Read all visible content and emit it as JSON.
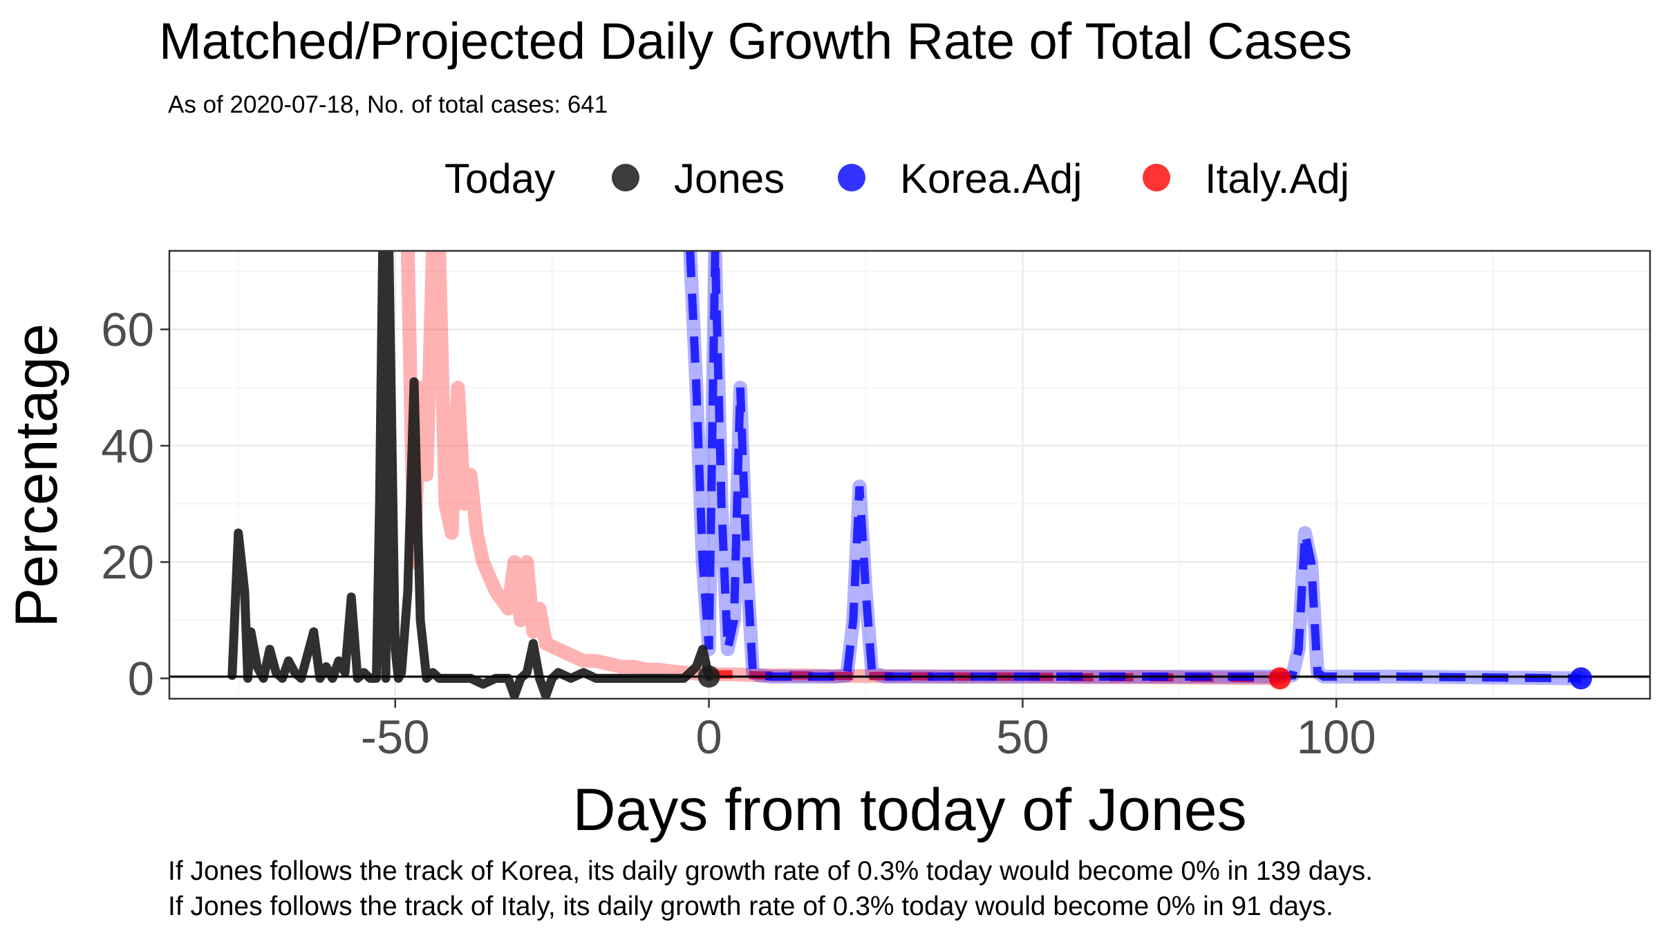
{
  "chart_data": {
    "type": "line",
    "title": "Matched/Projected Daily Growth Rate of Total Cases",
    "subtitle": "As of 2020-07-18, No. of total cases: 641",
    "xlabel": "Days from today of Jones",
    "ylabel": "Percentage",
    "xlim": [
      -86,
      150
    ],
    "ylim": [
      -3.5,
      73.5
    ],
    "xticks": [
      -50,
      0,
      50,
      100
    ],
    "yticks": [
      0,
      20,
      40,
      60
    ],
    "grid": true,
    "legend": {
      "position": "top",
      "title": "Today",
      "entries": [
        {
          "label": "Jones",
          "color": "#1a1a1a"
        },
        {
          "label": "Korea.Adj",
          "color": "#0000ff"
        },
        {
          "label": "Italy.Adj",
          "color": "#ff0000"
        }
      ]
    },
    "reference_line_y": 0.3,
    "series": [
      {
        "name": "Jones",
        "color": "#1a1a1a",
        "x": [
          -76,
          -75,
          -74,
          -73.5,
          -73,
          -72,
          -71,
          -70,
          -69,
          -68,
          -67,
          -66,
          -65,
          -64,
          -63,
          -62,
          -61,
          -60,
          -59,
          -58,
          -57,
          -56,
          -55,
          -54,
          -53,
          -52.5,
          -52,
          -51.5,
          -51,
          -50,
          -49.5,
          -49,
          -48,
          -47,
          -46,
          -45,
          -44,
          -43,
          -42,
          -40,
          -38,
          -36,
          -34,
          -32,
          -31,
          -30,
          -29,
          -28,
          -27,
          -26,
          -25,
          -24,
          -22,
          -20,
          -18,
          -16,
          -14,
          -12,
          -10,
          -8,
          -6,
          -4,
          -3,
          -2,
          -1,
          0
        ],
        "y": [
          0.5,
          25,
          15,
          0,
          8,
          2,
          0,
          5,
          1,
          0,
          3,
          1,
          0,
          4,
          8,
          0,
          2,
          0,
          3,
          1,
          14,
          0,
          1,
          0,
          0,
          30,
          73.5,
          0,
          73.5,
          5,
          0,
          1,
          15,
          51,
          10,
          0,
          1,
          0,
          0,
          0,
          0,
          -1,
          0,
          0,
          -3,
          0,
          1,
          6,
          0,
          -3,
          0,
          1,
          0,
          1,
          0,
          0,
          0,
          0,
          0,
          0,
          0,
          0,
          1,
          2,
          5,
          0.3
        ]
      },
      {
        "name": "Korea.Adj",
        "color": "#0000ff",
        "x": [
          -3,
          -2,
          -1,
          0,
          1,
          2,
          3,
          4,
          5,
          6,
          7,
          8,
          10,
          15,
          20,
          22,
          23,
          24,
          25,
          26,
          28,
          30,
          40,
          50,
          60,
          70,
          80,
          90,
          93,
          94,
          95,
          96,
          97,
          98,
          100,
          110,
          120,
          130,
          139
        ],
        "y": [
          73.5,
          50,
          20,
          5,
          73.5,
          30,
          5,
          10,
          50,
          20,
          1,
          0.5,
          0.3,
          0.3,
          0.3,
          0.5,
          10,
          33,
          15,
          1,
          0.3,
          0.3,
          0.3,
          0.3,
          0.3,
          0.3,
          0.3,
          0.3,
          0.5,
          5,
          25,
          20,
          1,
          0.3,
          0.3,
          0.3,
          0.2,
          0.1,
          0
        ]
      },
      {
        "name": "Italy.Adj",
        "color": "#ff0000",
        "x": [
          -48,
          -47,
          -46,
          -45,
          -44,
          -43,
          -42,
          -41,
          -40,
          -39,
          -38,
          -37,
          -36,
          -34,
          -32,
          -31,
          -30,
          -29,
          -28,
          -27,
          -26,
          -24,
          -22,
          -20,
          -18,
          -16,
          -14,
          -12,
          -10,
          -8,
          -6,
          -4,
          -2,
          0,
          2,
          4,
          6,
          8,
          10,
          15,
          20,
          30,
          40,
          50,
          60,
          70,
          80,
          91
        ],
        "y": [
          73.5,
          20,
          50,
          35,
          73.5,
          73.5,
          30,
          25,
          50,
          30,
          35,
          25,
          20,
          15,
          12,
          20,
          10,
          20,
          8,
          12,
          6,
          5,
          4,
          3,
          3,
          2.5,
          2,
          2,
          1.5,
          1.5,
          1.2,
          1,
          0.8,
          0.8,
          0.7,
          0.7,
          0.6,
          0.5,
          0.5,
          0.5,
          0.4,
          0.4,
          0.3,
          0.3,
          0.2,
          0.2,
          0.1,
          0
        ]
      }
    ],
    "today_points": [
      {
        "series": "Jones",
        "x": 0,
        "y": 0.3
      },
      {
        "series": "Korea.Adj",
        "x": 139,
        "y": 0
      },
      {
        "series": "Italy.Adj",
        "x": 91,
        "y": 0
      }
    ],
    "annotations": [
      "If Jones follows the track of Korea, its daily growth rate of 0.3% today would become 0% in 139 days.",
      "If Jones follows the track of Italy, its daily growth rate of 0.3% today would become 0% in 91 days."
    ]
  }
}
